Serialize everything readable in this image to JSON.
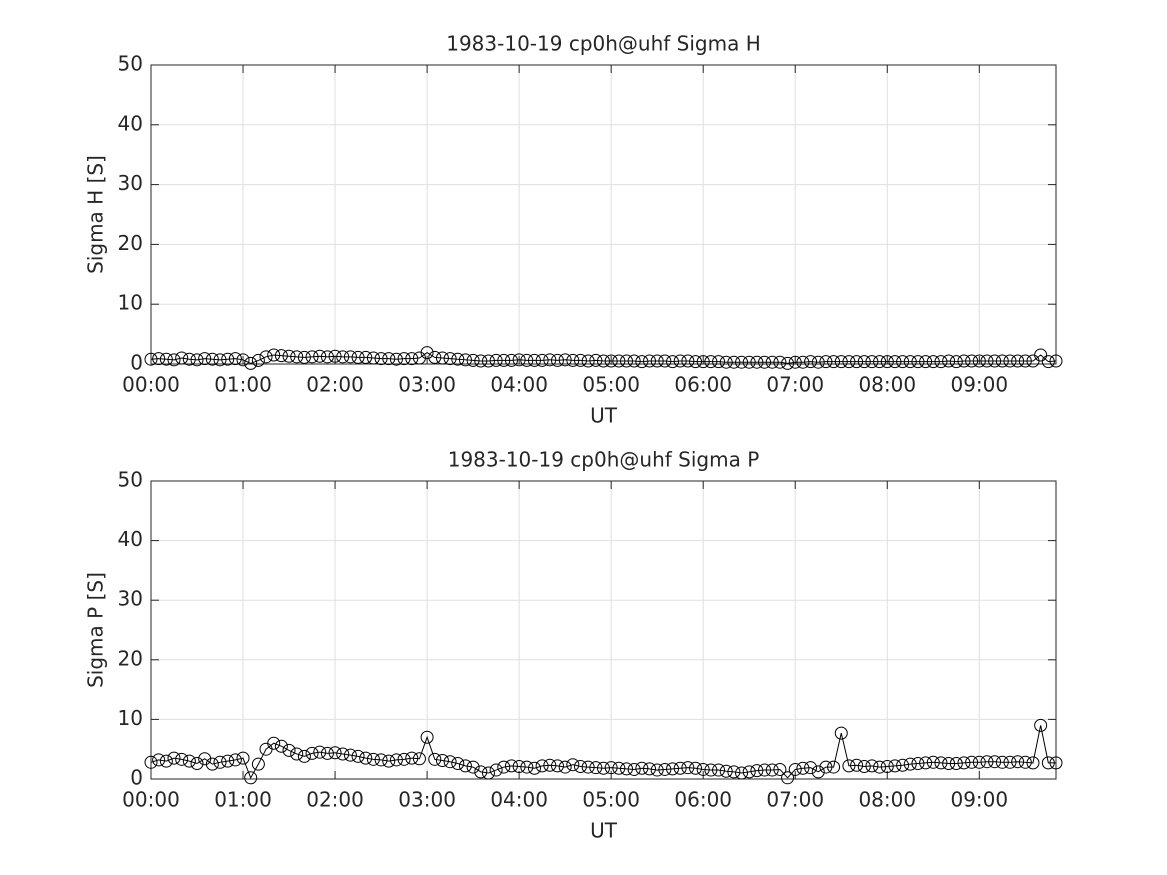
{
  "chart_data": [
    {
      "type": "line",
      "title": "1983-10-19  cp0h@uhf Sigma H",
      "xlabel": "UT",
      "ylabel": "Sigma H [S]",
      "x": [
        "00:00",
        "00:05",
        "00:10",
        "00:15",
        "00:20",
        "00:25",
        "00:30",
        "00:35",
        "00:40",
        "00:45",
        "00:50",
        "00:55",
        "01:00",
        "01:05",
        "01:10",
        "01:15",
        "01:20",
        "01:25",
        "01:30",
        "01:35",
        "01:40",
        "01:45",
        "01:50",
        "01:55",
        "02:00",
        "02:05",
        "02:10",
        "02:15",
        "02:20",
        "02:25",
        "02:30",
        "02:35",
        "02:40",
        "02:45",
        "02:50",
        "02:55",
        "03:00",
        "03:05",
        "03:10",
        "03:15",
        "03:20",
        "03:25",
        "03:30",
        "03:35",
        "03:40",
        "03:45",
        "03:50",
        "03:55",
        "04:00",
        "04:05",
        "04:10",
        "04:15",
        "04:20",
        "04:25",
        "04:30",
        "04:35",
        "04:40",
        "04:45",
        "04:50",
        "04:55",
        "05:00",
        "05:05",
        "05:10",
        "05:15",
        "05:20",
        "05:25",
        "05:30",
        "05:35",
        "05:40",
        "05:45",
        "05:50",
        "05:55",
        "06:00",
        "06:05",
        "06:10",
        "06:15",
        "06:20",
        "06:25",
        "06:30",
        "06:35",
        "06:40",
        "06:45",
        "06:50",
        "06:55",
        "07:00",
        "07:05",
        "07:10",
        "07:15",
        "07:20",
        "07:25",
        "07:30",
        "07:35",
        "07:40",
        "07:45",
        "07:50",
        "07:55",
        "08:00",
        "08:05",
        "08:10",
        "08:15",
        "08:20",
        "08:25",
        "08:30",
        "08:35",
        "08:40",
        "08:45",
        "08:50",
        "08:55",
        "09:00",
        "09:05",
        "09:10",
        "09:15",
        "09:20",
        "09:25",
        "09:30",
        "09:35",
        "09:40",
        "09:45",
        "09:50"
      ],
      "values": [
        0.8,
        0.9,
        0.8,
        0.7,
        1.0,
        0.8,
        0.7,
        0.9,
        0.8,
        0.7,
        0.8,
        0.9,
        0.7,
        0.1,
        0.6,
        1.2,
        1.5,
        1.4,
        1.3,
        1.2,
        1.1,
        1.2,
        1.3,
        1.2,
        1.3,
        1.2,
        1.2,
        1.1,
        1.1,
        1.0,
        0.9,
        0.9,
        0.8,
        0.9,
        0.9,
        1.0,
        1.9,
        1.1,
        1.0,
        0.9,
        0.8,
        0.7,
        0.6,
        0.5,
        0.5,
        0.6,
        0.6,
        0.6,
        0.7,
        0.6,
        0.6,
        0.6,
        0.7,
        0.6,
        0.7,
        0.6,
        0.6,
        0.5,
        0.6,
        0.5,
        0.5,
        0.5,
        0.5,
        0.5,
        0.4,
        0.5,
        0.5,
        0.5,
        0.4,
        0.5,
        0.5,
        0.4,
        0.4,
        0.4,
        0.4,
        0.3,
        0.3,
        0.3,
        0.3,
        0.3,
        0.3,
        0.3,
        0.3,
        0.1,
        0.3,
        0.3,
        0.4,
        0.3,
        0.4,
        0.4,
        0.4,
        0.4,
        0.4,
        0.4,
        0.4,
        0.4,
        0.4,
        0.4,
        0.4,
        0.4,
        0.4,
        0.4,
        0.4,
        0.4,
        0.5,
        0.4,
        0.5,
        0.5,
        0.5,
        0.5,
        0.5,
        0.5,
        0.5,
        0.5,
        0.5,
        0.5,
        1.5,
        0.4,
        0.5
      ],
      "color": "#000000",
      "xlim": [
        "00:00",
        "09:50"
      ],
      "xticks": [
        "00:00",
        "01:00",
        "02:00",
        "03:00",
        "04:00",
        "05:00",
        "06:00",
        "07:00",
        "08:00",
        "09:00"
      ],
      "ylim": [
        0,
        50
      ],
      "yticks": [
        0,
        10,
        20,
        30,
        40,
        50
      ],
      "grid": true
    },
    {
      "type": "line",
      "title": "1983-10-19  cp0h@uhf Sigma P",
      "xlabel": "UT",
      "ylabel": "Sigma P [S]",
      "x": [
        "00:00",
        "00:05",
        "00:10",
        "00:15",
        "00:20",
        "00:25",
        "00:30",
        "00:35",
        "00:40",
        "00:45",
        "00:50",
        "00:55",
        "01:00",
        "01:05",
        "01:10",
        "01:15",
        "01:20",
        "01:25",
        "01:30",
        "01:35",
        "01:40",
        "01:45",
        "01:50",
        "01:55",
        "02:00",
        "02:05",
        "02:10",
        "02:15",
        "02:20",
        "02:25",
        "02:30",
        "02:35",
        "02:40",
        "02:45",
        "02:50",
        "02:55",
        "03:00",
        "03:05",
        "03:10",
        "03:15",
        "03:20",
        "03:25",
        "03:30",
        "03:35",
        "03:40",
        "03:45",
        "03:50",
        "03:55",
        "04:00",
        "04:05",
        "04:10",
        "04:15",
        "04:20",
        "04:25",
        "04:30",
        "04:35",
        "04:40",
        "04:45",
        "04:50",
        "04:55",
        "05:00",
        "05:05",
        "05:10",
        "05:15",
        "05:20",
        "05:25",
        "05:30",
        "05:35",
        "05:40",
        "05:45",
        "05:50",
        "05:55",
        "06:00",
        "06:05",
        "06:10",
        "06:15",
        "06:20",
        "06:25",
        "06:30",
        "06:35",
        "06:40",
        "06:45",
        "06:50",
        "06:55",
        "07:00",
        "07:05",
        "07:10",
        "07:15",
        "07:20",
        "07:25",
        "07:30",
        "07:35",
        "07:40",
        "07:45",
        "07:50",
        "07:55",
        "08:00",
        "08:05",
        "08:10",
        "08:15",
        "08:20",
        "08:25",
        "08:30",
        "08:35",
        "08:40",
        "08:45",
        "08:50",
        "08:55",
        "09:00",
        "09:05",
        "09:10",
        "09:15",
        "09:20",
        "09:25",
        "09:30",
        "09:35",
        "09:40",
        "09:45",
        "09:50"
      ],
      "values": [
        2.8,
        3.2,
        3.0,
        3.5,
        3.3,
        3.0,
        2.6,
        3.4,
        2.5,
        2.8,
        3.0,
        3.2,
        3.5,
        0.2,
        2.5,
        5.0,
        6.0,
        5.5,
        4.8,
        4.2,
        3.8,
        4.3,
        4.5,
        4.3,
        4.4,
        4.2,
        4.0,
        3.8,
        3.5,
        3.3,
        3.2,
        3.0,
        3.2,
        3.3,
        3.5,
        3.4,
        7.0,
        3.3,
        3.1,
        2.9,
        2.6,
        2.2,
        2.0,
        1.2,
        1.0,
        1.5,
        2.0,
        2.2,
        2.1,
        2.0,
        1.8,
        2.2,
        2.3,
        2.2,
        2.0,
        2.4,
        2.1,
        2.0,
        1.9,
        1.8,
        1.9,
        1.8,
        1.7,
        1.6,
        1.8,
        1.7,
        1.5,
        1.6,
        1.7,
        1.8,
        1.9,
        1.8,
        1.6,
        1.5,
        1.5,
        1.3,
        1.2,
        1.0,
        1.2,
        1.4,
        1.5,
        1.5,
        1.6,
        0.2,
        1.6,
        1.8,
        1.9,
        1.2,
        2.0,
        2.0,
        7.7,
        2.2,
        2.3,
        2.1,
        2.2,
        2.0,
        2.1,
        2.2,
        2.3,
        2.5,
        2.6,
        2.7,
        2.8,
        2.7,
        2.6,
        2.6,
        2.7,
        2.8,
        2.8,
        2.9,
        2.9,
        2.8,
        2.8,
        2.9,
        2.8,
        2.7,
        9.0,
        2.7,
        2.7
      ],
      "color": "#000000",
      "xlim": [
        "00:00",
        "09:50"
      ],
      "xticks": [
        "00:00",
        "01:00",
        "02:00",
        "03:00",
        "04:00",
        "05:00",
        "06:00",
        "07:00",
        "08:00",
        "09:00"
      ],
      "ylim": [
        0,
        50
      ],
      "yticks": [
        0,
        10,
        20,
        30,
        40,
        50
      ],
      "grid": true
    }
  ]
}
